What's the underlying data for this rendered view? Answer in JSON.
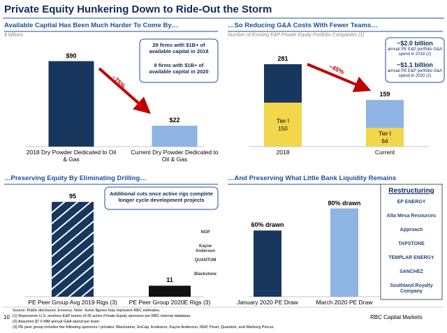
{
  "header": {
    "title": "Private Equity Hunkering Down to Ride-Out the Storm"
  },
  "chart_data": [
    {
      "type": "bar",
      "title": "Available Capital Has Been Much Harder To Come By…",
      "subtitle": "$ billions",
      "categories": [
        "2018 Dry Powder Dedicated to Oil & Gas",
        "Current Dry Powder Dedicated to Oil & Gas"
      ],
      "values": [
        90,
        22
      ],
      "value_labels": [
        "$90",
        "$22"
      ],
      "colors": [
        "#17375e",
        "#8db4e2"
      ],
      "ylim": [
        0,
        100
      ],
      "annotation": "~75%",
      "callouts": [
        "29 firms with $1B+ of available capital in 2018",
        "9 firms with $1B+ of available capital in 2020"
      ]
    },
    {
      "type": "stacked_bar",
      "title": "…So Reducing G&A Costs With Fewer Teams…",
      "subtitle": "Number of Existing E&P Private Equity Portfolio Companies (1)",
      "categories": [
        "2018",
        "Current"
      ],
      "series": [
        {
          "name": "Tier I",
          "color": "#f2d64b",
          "values": [
            150,
            64
          ]
        },
        {
          "colors": [
            "#17375e",
            "#8db4e2"
          ],
          "values": [
            131,
            95
          ]
        }
      ],
      "totals": [
        281,
        159
      ],
      "ylim": [
        0,
        300
      ],
      "annotation": "~45%",
      "callouts": [
        {
          "value": "~$2.0 billion",
          "text": "annual PE E&P portfolio G&A spend in 2018 (2)"
        },
        {
          "value": "~$1.1 billion",
          "text": "annual PE E&P portfolio G&A spend in 2020 (2)"
        }
      ]
    },
    {
      "type": "bar",
      "title": "…Preserving Equity By Eliminating Drilling…",
      "categories": [
        "PE Peer Group Avg 2019 Rigs (3)",
        "PE Peer Group 2020E Rigs (3)"
      ],
      "values": [
        95,
        11
      ],
      "colors": [
        "#17375e",
        "#111111"
      ],
      "ylim": [
        0,
        100
      ],
      "callout": "Additional cuts once active rigs complete longer cycle development projects",
      "logos": [
        "NGP",
        "Kayne Anderson",
        "QUANTUM",
        "Blackstone"
      ]
    },
    {
      "type": "bar",
      "title": "…And Preserving What Little Bank Liquidity Remains",
      "categories": [
        "January 2020 PE Draw",
        "March 2020 PE Draw"
      ],
      "values": [
        60,
        80
      ],
      "value_labels": [
        "60% drawn",
        "80% drawn"
      ],
      "colors": [
        "#17375e",
        "#8db4e2"
      ],
      "ylim": [
        0,
        100
      ],
      "box_title": "Restructuring",
      "logos": [
        "EP ENERGY",
        "Alta Mesa Resources",
        "Approach",
        "TAPSTONE",
        "TEMPLAR ENERGY",
        "SANCHEZ",
        "Southland Royalty Company"
      ]
    }
  ],
  "footer": {
    "page": "10",
    "notes": [
      "Source: Public disclosure, Enverus. Note: Some figures may represent RBC estimates.",
      "(1) Represents U.S. onshore E&P teams of 35 active Private Equity sponsors per RBC internal database.",
      "(2) Assumes $7.0 MM annual G&A spend per team.",
      "(3) PE peer group includes the following sponsors / privates: Blackstone, EnCap, Endeavor, Kayne Anderson, NGP, Pearl, Quantum, and Warburg Pincus."
    ],
    "brand": "RBC Capital Markets"
  }
}
